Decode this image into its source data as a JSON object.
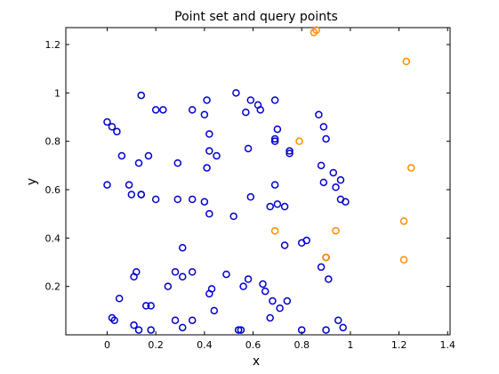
{
  "chart_data": {
    "type": "scatter",
    "title": "Point set and query points",
    "xlabel": "x",
    "ylabel": "y",
    "xlim": [
      -0.17,
      1.41
    ],
    "ylim": [
      0.0,
      1.27
    ],
    "grid": false,
    "xticks": [
      0,
      0.2,
      0.4,
      0.6,
      0.8,
      1,
      1.2,
      1.4
    ],
    "yticks": [
      0.2,
      0.4,
      0.6,
      0.8,
      1,
      1.2
    ],
    "series": [
      {
        "color": "#0000cc",
        "marker": "circle-open",
        "x": [
          0.0,
          0.02,
          0.04,
          0.06,
          0.0,
          0.09,
          0.1,
          0.14,
          0.14,
          0.13,
          0.17,
          0.14,
          0.2,
          0.23,
          0.2,
          0.29,
          0.29,
          0.35,
          0.35,
          0.41,
          0.42,
          0.42,
          0.45,
          0.4,
          0.41,
          0.42,
          0.4,
          0.53,
          0.57,
          0.59,
          0.62,
          0.63,
          0.69,
          0.7,
          0.69,
          0.69,
          0.58,
          0.69,
          0.75,
          0.75,
          0.89,
          0.9,
          0.88,
          0.93,
          0.96,
          0.94,
          0.89,
          0.96,
          0.98,
          0.67,
          0.59,
          0.7,
          0.73,
          0.8,
          0.82,
          0.9,
          0.88,
          0.91,
          0.43,
          0.42,
          0.31,
          0.35,
          0.28,
          0.31,
          0.49,
          0.58,
          0.56,
          0.64,
          0.68,
          0.74,
          0.73,
          0.67,
          0.71,
          0.65,
          0.55,
          0.54,
          0.44,
          0.35,
          0.28,
          0.31,
          0.16,
          0.18,
          0.12,
          0.11,
          0.05,
          0.02,
          0.03,
          0.11,
          0.13,
          0.18,
          0.25,
          0.8,
          0.9,
          0.95,
          0.97,
          0.87,
          0.52
        ],
        "y": [
          0.88,
          0.86,
          0.84,
          0.74,
          0.62,
          0.62,
          0.58,
          0.58,
          0.58,
          0.71,
          0.74,
          0.99,
          0.93,
          0.93,
          0.56,
          0.56,
          0.71,
          0.93,
          0.56,
          0.69,
          0.76,
          0.83,
          0.74,
          0.91,
          0.97,
          0.5,
          0.55,
          1.0,
          0.92,
          0.97,
          0.95,
          0.93,
          0.97,
          0.85,
          0.81,
          0.8,
          0.77,
          0.62,
          0.76,
          0.75,
          0.86,
          0.81,
          0.7,
          0.67,
          0.64,
          0.61,
          0.63,
          0.56,
          0.55,
          0.53,
          0.57,
          0.54,
          0.53,
          0.38,
          0.39,
          0.32,
          0.28,
          0.23,
          0.19,
          0.17,
          0.36,
          0.26,
          0.26,
          0.24,
          0.25,
          0.23,
          0.2,
          0.21,
          0.14,
          0.14,
          0.37,
          0.07,
          0.11,
          0.18,
          0.02,
          0.02,
          0.1,
          0.06,
          0.06,
          0.03,
          0.12,
          0.12,
          0.26,
          0.24,
          0.15,
          0.07,
          0.06,
          0.04,
          0.02,
          0.02,
          0.2,
          0.02,
          0.02,
          0.06,
          0.03,
          0.91,
          0.49
        ]
      },
      {
        "color": "#ff8c00",
        "marker": "circle-open",
        "x": [
          0.85,
          0.86,
          1.23,
          0.79,
          1.25,
          0.69,
          0.94,
          1.22,
          0.9,
          1.22
        ],
        "y": [
          1.25,
          1.26,
          1.13,
          0.8,
          0.69,
          0.43,
          0.43,
          0.47,
          0.32,
          0.31
        ]
      }
    ]
  }
}
